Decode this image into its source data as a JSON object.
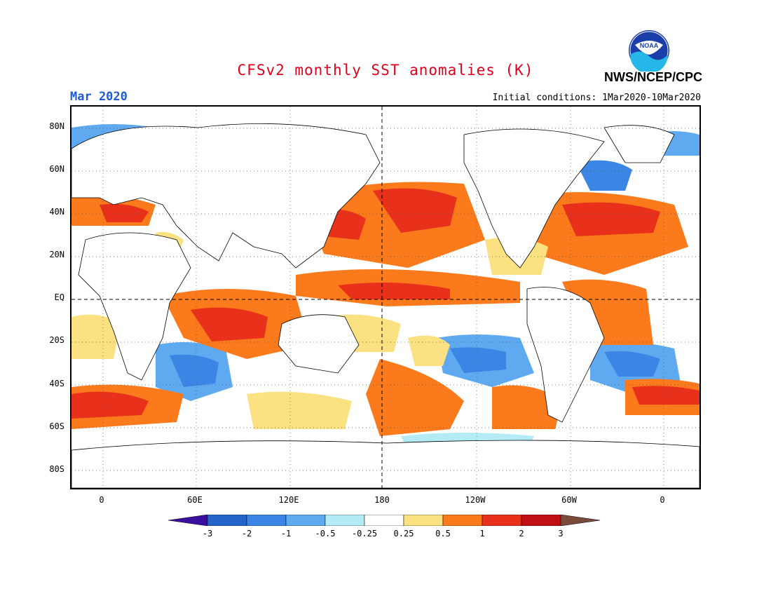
{
  "title": "CFSv2 monthly SST anomalies (K)",
  "org": "NWS/NCEP/CPC",
  "logo_text": "NOAA",
  "period": "Mar 2020",
  "initial_conditions": "Initial conditions: 1Mar2020-10Mar2020",
  "lat_labels": [
    "80N",
    "60N",
    "40N",
    "20N",
    "EQ",
    "20S",
    "40S",
    "60S",
    "80S"
  ],
  "lon_labels": [
    "0",
    "60E",
    "120E",
    "180",
    "120W",
    "60W",
    "0"
  ],
  "colorbar": {
    "labels": [
      "-3",
      "-2",
      "-1",
      "-0.5",
      "-0.25",
      "0.25",
      "0.5",
      "1",
      "2",
      "3"
    ],
    "colors": [
      "#3a0fa0",
      "#2463c8",
      "#3b86e4",
      "#5fa9f0",
      "#b4ecf5",
      "#ffffff",
      "#fbe181",
      "#fb7a1c",
      "#e8301a",
      "#c00f12",
      "#7a4a3a"
    ]
  }
}
